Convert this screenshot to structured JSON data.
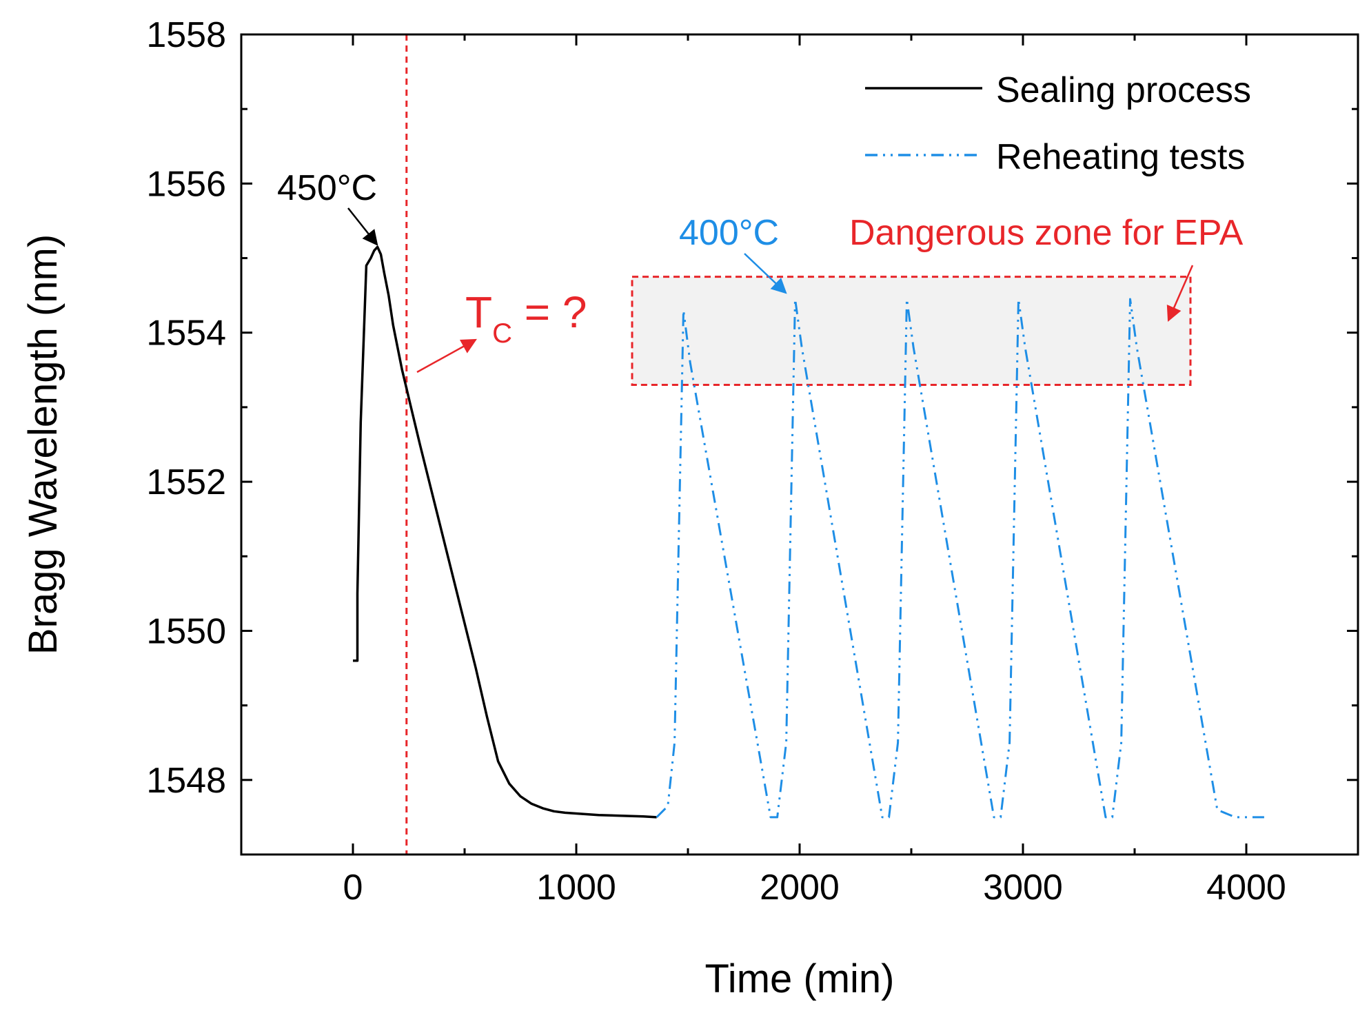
{
  "chart_data": {
    "type": "line",
    "xlabel": "Time (min)",
    "ylabel": "Bragg Wavelength (nm)",
    "xlim": [
      -500,
      4500
    ],
    "ylim": [
      1547,
      1558
    ],
    "xticks": [
      0,
      1000,
      2000,
      3000,
      4000
    ],
    "yticks": [
      1548,
      1550,
      1552,
      1554,
      1556,
      1558
    ],
    "legend_position": "top-right",
    "series": [
      {
        "name": "Sealing process",
        "style": "solid",
        "color": "#000000",
        "x": [
          0,
          20,
          20,
          35,
          60,
          80,
          95,
          110,
          125,
          140,
          160,
          180,
          200,
          220,
          240,
          260,
          300,
          350,
          400,
          450,
          500,
          550,
          600,
          650,
          700,
          750,
          800,
          850,
          900,
          950,
          1000,
          1100,
          1200,
          1300,
          1360
        ],
        "y": [
          1549.6,
          1549.6,
          1550.5,
          1552.8,
          1554.9,
          1555.0,
          1555.1,
          1555.15,
          1555.05,
          1554.8,
          1554.5,
          1554.1,
          1553.8,
          1553.5,
          1553.25,
          1553.0,
          1552.5,
          1551.9,
          1551.3,
          1550.7,
          1550.1,
          1549.5,
          1548.85,
          1548.25,
          1547.95,
          1547.78,
          1547.68,
          1547.62,
          1547.58,
          1547.56,
          1547.55,
          1547.53,
          1547.52,
          1547.51,
          1547.5
        ]
      },
      {
        "name": "Reheating tests",
        "style": "dashdot",
        "color": "#1e8ee6",
        "x": [
          1360,
          1410,
          1440,
          1480,
          1510,
          1870,
          1900,
          1940,
          1980,
          2010,
          2370,
          2400,
          2440,
          2480,
          2510,
          2870,
          2900,
          2940,
          2980,
          3010,
          3370,
          3400,
          3440,
          3480,
          3510,
          3870,
          3950,
          4080
        ],
        "y": [
          1547.5,
          1547.65,
          1548.5,
          1554.3,
          1553.6,
          1547.5,
          1547.5,
          1548.5,
          1554.45,
          1553.8,
          1547.5,
          1547.5,
          1548.5,
          1554.45,
          1553.8,
          1547.5,
          1547.5,
          1548.5,
          1554.45,
          1553.8,
          1547.5,
          1547.5,
          1548.5,
          1554.45,
          1553.8,
          1547.6,
          1547.5,
          1547.5
        ]
      }
    ],
    "annotations": {
      "peak_sealing": "450°C",
      "peak_reheat": "400°C",
      "tc_main": "T",
      "tc_sub": "C",
      "tc_rest": " = ?",
      "danger_zone": "Dangerous zone for EPA"
    },
    "vertical_line_x": 240,
    "danger_zone_box": {
      "x": [
        1250,
        3750
      ],
      "y": [
        1553.3,
        1554.75
      ]
    },
    "colors": {
      "axis": "#000000",
      "red": "#e8262a",
      "blue": "#1e8ee6",
      "zone_fill": "#f2f2f2"
    }
  }
}
